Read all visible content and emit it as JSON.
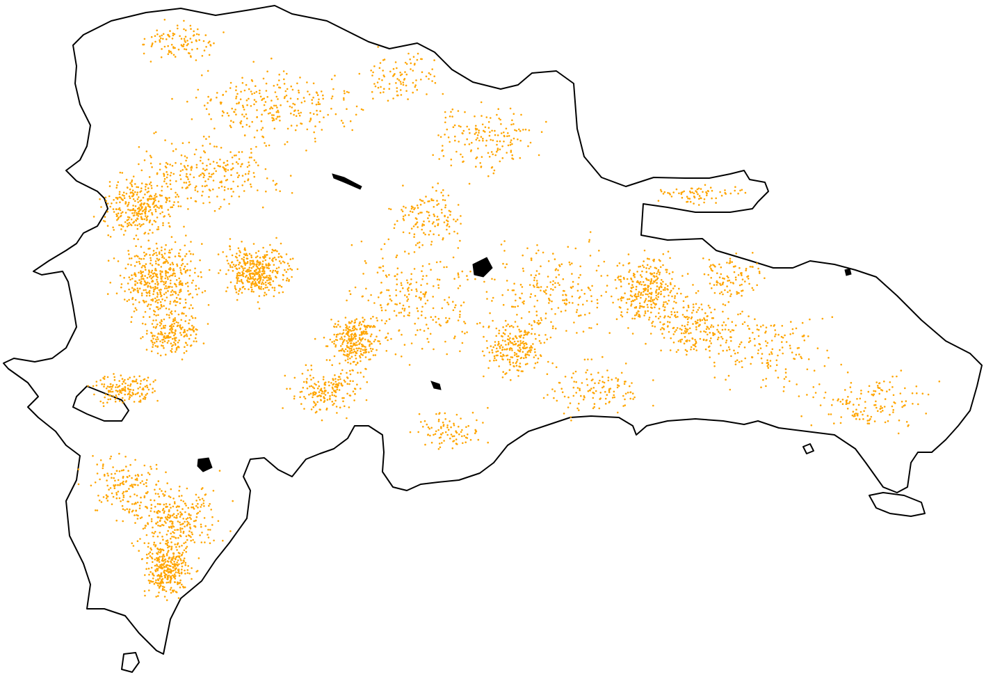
{
  "map": {
    "point_color": "#FFA500",
    "outline_color": "#000000",
    "background_color": "#FFFFFF",
    "legend": "none",
    "axes": "none"
  }
}
